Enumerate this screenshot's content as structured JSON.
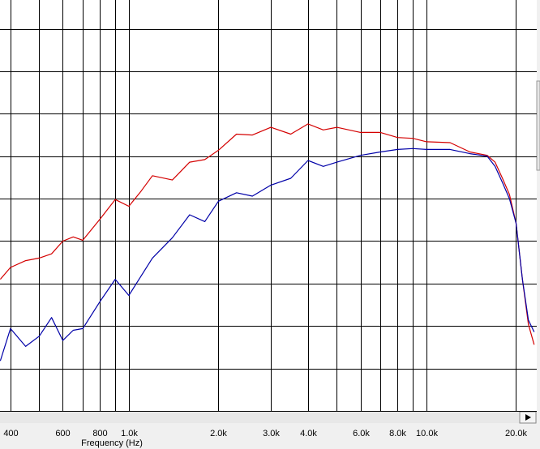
{
  "chart_data": {
    "type": "line",
    "x_label": "Frequency (Hz)",
    "log_x": true,
    "xlim": [
      369,
      23470
    ],
    "xticks": [
      {
        "value": 400,
        "label": "400"
      },
      {
        "value": 600,
        "label": "600"
      },
      {
        "value": 800,
        "label": "800"
      },
      {
        "value": 1000,
        "label": "1.0k"
      },
      {
        "value": 2000,
        "label": "2.0k"
      },
      {
        "value": 3000,
        "label": "3.0k"
      },
      {
        "value": 4000,
        "label": "4.0k"
      },
      {
        "value": 6000,
        "label": "6.0k"
      },
      {
        "value": 8000,
        "label": "8.0k"
      },
      {
        "value": 10000,
        "label": "10.0k"
      },
      {
        "value": 20000,
        "label": "20.0k"
      }
    ],
    "xminor": [
      500,
      700,
      900,
      5000,
      7000,
      9000
    ],
    "ylim": [
      -45,
      3.4
    ],
    "ygrid": [
      0,
      -5,
      -10,
      -15,
      -20,
      -25,
      -30,
      -35,
      -40,
      -45
    ],
    "x": [
      370,
      400,
      450,
      500,
      550,
      600,
      650,
      700,
      800,
      900,
      1000,
      1100,
      1200,
      1400,
      1600,
      1800,
      2000,
      2300,
      2600,
      3000,
      3500,
      4000,
      4500,
      5000,
      6000,
      7000,
      8000,
      9000,
      10000,
      12000,
      14000,
      16000,
      17000,
      18000,
      19000,
      20000,
      21000,
      22000,
      23000
    ],
    "series": [
      {
        "color": "#d40000",
        "values": [
          -29.5,
          -28.1,
          -27.3,
          -27.0,
          -26.5,
          -25.0,
          -24.5,
          -24.9,
          -22.4,
          -20.1,
          -20.9,
          -19.1,
          -17.3,
          -17.8,
          -15.7,
          -15.4,
          -14.3,
          -12.4,
          -12.5,
          -11.6,
          -12.4,
          -11.2,
          -11.9,
          -11.6,
          -12.2,
          -12.2,
          -12.8,
          -12.9,
          -13.3,
          -13.4,
          -14.5,
          -14.9,
          -15.7,
          -17.6,
          -19.5,
          -22.9,
          -29.5,
          -34.8,
          -37.2
        ]
      },
      {
        "color": "#0000a8",
        "values": [
          -39.1,
          -35.3,
          -37.4,
          -36.2,
          -34.0,
          -36.7,
          -35.5,
          -35.3,
          -32.1,
          -29.5,
          -31.4,
          -29.1,
          -27.0,
          -24.6,
          -21.9,
          -22.7,
          -20.3,
          -19.3,
          -19.7,
          -18.4,
          -17.6,
          -15.5,
          -16.2,
          -15.7,
          -14.9,
          -14.5,
          -14.2,
          -14.1,
          -14.2,
          -14.2,
          -14.7,
          -15.0,
          -16.2,
          -18.1,
          -20.0,
          -22.9,
          -29.5,
          -34.3,
          -35.7
        ]
      }
    ]
  }
}
